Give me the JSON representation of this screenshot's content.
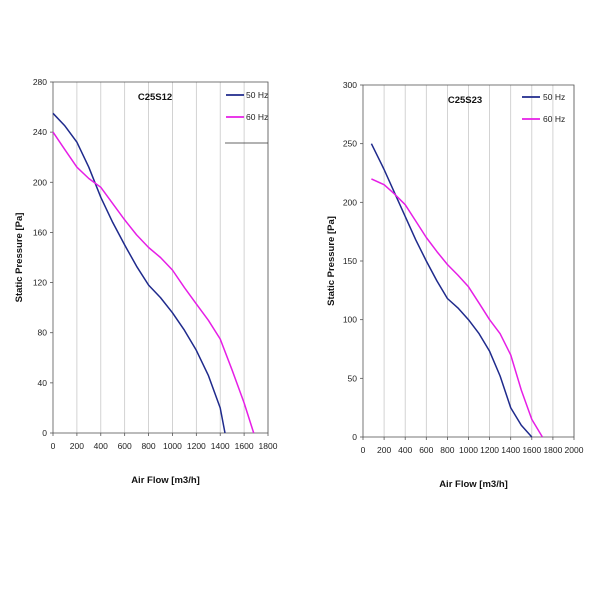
{
  "chart_data": [
    {
      "type": "line",
      "title": "C25S12",
      "xlabel": "Air Flow [m3/h]",
      "ylabel": "Static Pressure [Pa]",
      "xlim": [
        0,
        1800
      ],
      "ylim": [
        0,
        280
      ],
      "xticks": [
        0,
        200,
        400,
        600,
        800,
        1000,
        1200,
        1400,
        1600,
        1800
      ],
      "yticks": [
        0,
        40,
        80,
        120,
        160,
        200,
        240,
        280
      ],
      "grid": "vertical",
      "legend": "top-right",
      "series": [
        {
          "name": "50 Hz",
          "color": "#1f2a8c",
          "x": [
            0,
            100,
            200,
            300,
            400,
            500,
            600,
            700,
            800,
            900,
            1000,
            1100,
            1200,
            1300,
            1400,
            1440
          ],
          "y": [
            255,
            245,
            232,
            212,
            188,
            168,
            150,
            133,
            118,
            108,
            96,
            82,
            66,
            46,
            20,
            0
          ]
        },
        {
          "name": "60 Hz",
          "color": "#e61ee6",
          "x": [
            0,
            100,
            200,
            300,
            400,
            500,
            600,
            700,
            800,
            900,
            1000,
            1100,
            1200,
            1300,
            1400,
            1500,
            1600,
            1680
          ],
          "y": [
            240,
            226,
            212,
            203,
            196,
            183,
            170,
            158,
            148,
            140,
            130,
            116,
            103,
            90,
            75,
            50,
            24,
            0
          ]
        }
      ]
    },
    {
      "type": "line",
      "title": "C25S23",
      "xlabel": "Air Flow [m3/h]",
      "ylabel": "Static Pressure [Pa]",
      "xlim": [
        0,
        2000
      ],
      "ylim": [
        0,
        300
      ],
      "xticks": [
        0,
        200,
        400,
        600,
        800,
        1000,
        1200,
        1400,
        1600,
        1800,
        2000
      ],
      "yticks": [
        0,
        50,
        100,
        150,
        200,
        250,
        300
      ],
      "grid": "vertical",
      "legend": "top-right",
      "series": [
        {
          "name": "50 Hz",
          "color": "#1f2a8c",
          "x": [
            80,
            200,
            300,
            400,
            500,
            600,
            700,
            800,
            900,
            1000,
            1100,
            1200,
            1300,
            1400,
            1500,
            1600
          ],
          "y": [
            250,
            228,
            208,
            188,
            168,
            150,
            133,
            118,
            110,
            100,
            88,
            73,
            52,
            25,
            10,
            0
          ]
        },
        {
          "name": "60 Hz",
          "color": "#e61ee6",
          "x": [
            80,
            200,
            300,
            400,
            500,
            600,
            700,
            800,
            900,
            1000,
            1100,
            1200,
            1300,
            1400,
            1500,
            1600,
            1700
          ],
          "y": [
            220,
            215,
            207,
            198,
            184,
            170,
            158,
            147,
            138,
            128,
            114,
            100,
            88,
            70,
            40,
            15,
            0
          ]
        }
      ]
    }
  ]
}
